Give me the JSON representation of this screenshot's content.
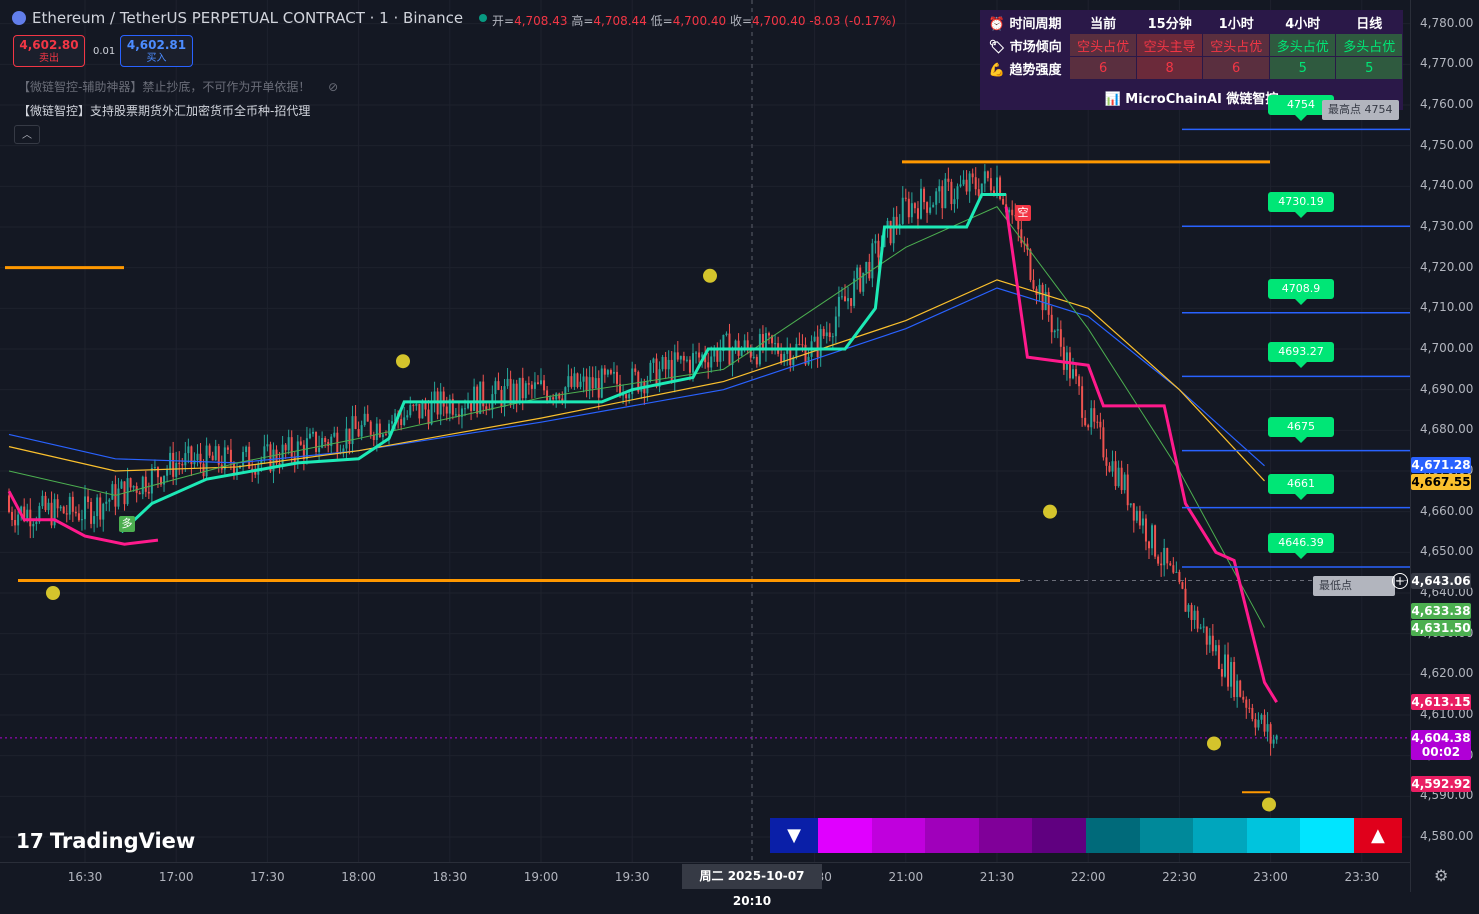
{
  "header": {
    "symbol": "Ethereum / TetherUS PERPETUAL CONTRACT · 1 · Binance",
    "open_label": "开=",
    "open": "4,708.43",
    "high_label": "高=",
    "high": "4,708.44",
    "low_label": "低=",
    "low": "4,700.40",
    "close_label": "收=",
    "close": "4,700.40",
    "change": "-8.03 (-0.17%)"
  },
  "trade": {
    "sell_price": "4,602.80",
    "sell_label": "卖出",
    "spread": "0.01",
    "buy_price": "4,602.81",
    "buy_label": "买入"
  },
  "indicators": {
    "line1": "【微链智控-辅助神器】禁止抄底，不可作为开单依据！",
    "line2": "【微链智控】支持股票期货外汇加密货币全币种-招代理"
  },
  "table": {
    "header": [
      "时间周期",
      "当前",
      "15分钟",
      "1小时",
      "4小时",
      "日线"
    ],
    "row1_label": "市场倾向",
    "row1": [
      "空头占优",
      "空头主导",
      "空头占优",
      "多头占优",
      "多头占优"
    ],
    "row2_label": "趋势强度",
    "row2": [
      "6",
      "8",
      "6",
      "5",
      "5"
    ],
    "footer": "MicroChainAI 微链智控",
    "colors": {
      "bear_bg": "#5a2f3f",
      "bear_strong_bg": "#6b2a3a",
      "bull_bg": "#2f5a3f",
      "bear_text": "#f23645",
      "bull_text": "#00e676"
    }
  },
  "price_axis": {
    "ticks": [
      "4,780.00",
      "4,770.00",
      "4,760.00",
      "4,750.00",
      "4,740.00",
      "4,730.00",
      "4,720.00",
      "4,710.00",
      "4,700.00",
      "4,690.00",
      "4,680.00",
      "4,670.00",
      "4,660.00",
      "4,650.00",
      "4,640.00",
      "4,630.00",
      "4,620.00",
      "4,610.00",
      "4,600.00",
      "4,590.00",
      "4,580.00"
    ],
    "tags": [
      {
        "label": "4,671.28",
        "color": "#2962ff"
      },
      {
        "label": "4,667.55",
        "color": "#fbc02d",
        "text": "#000"
      },
      {
        "label": "4,643.06",
        "color": "#363a45"
      },
      {
        "label": "4,633.38",
        "color": "#4caf50"
      },
      {
        "label": "4,631.50",
        "color": "#4caf50"
      },
      {
        "label": "4,613.15",
        "color": "#e91e63"
      },
      {
        "label": "4,604.38",
        "color": "#b000d6"
      },
      {
        "label": "00:02",
        "color": "#b000d6"
      },
      {
        "label": "4,592.92",
        "color": "#e91e63"
      }
    ]
  },
  "time_axis": {
    "ticks": [
      "16:30",
      "17:00",
      "17:30",
      "18:00",
      "18:30",
      "19:00",
      "19:30",
      "20:30",
      "21:00",
      "21:30",
      "22:00",
      "22:30",
      "23:00",
      "23:30"
    ],
    "cursor": "周二 2025-10-07   20:10"
  },
  "levels": {
    "labels": [
      "4754",
      "4730.19",
      "4708.9",
      "4693.27",
      "4675",
      "4661",
      "4646.39"
    ],
    "high_point": "最高点 4754",
    "low_point": "最低点 4646.39"
  },
  "markers": {
    "long": "多",
    "short": "空"
  },
  "branding": {
    "logo": "TradingView"
  },
  "chart_data": {
    "type": "line",
    "title": "Ethereum / TetherUS PERPETUAL CONTRACT · 1 · Binance",
    "x": [
      "16:30",
      "17:00",
      "17:30",
      "18:00",
      "18:30",
      "19:00",
      "19:30",
      "20:00",
      "20:30",
      "21:00",
      "21:30",
      "22:00",
      "22:30",
      "23:00"
    ],
    "series": [
      {
        "name": "close",
        "values": [
          4660,
          4672,
          4673,
          4680,
          4687,
          4690,
          4692,
          4700,
          4700,
          4735,
          4742,
          4683,
          4640,
          4604
        ]
      },
      {
        "name": "trend-bull",
        "values": [
          4655,
          4668,
          4672,
          4675,
          4687,
          4687,
          4693,
          4700,
          4700,
          4730,
          4738,
          null,
          null,
          null
        ]
      },
      {
        "name": "trend-bear",
        "values": [
          4664,
          4652,
          null,
          null,
          null,
          null,
          null,
          null,
          null,
          null,
          4735,
          4696,
          4686,
          4613
        ]
      }
    ],
    "ylim": [
      4575,
      4785
    ],
    "price_lines": [
      4754,
      4730.19,
      4708.9,
      4693.27,
      4675,
      4661,
      4646.39
    ],
    "support": 4643.06,
    "resistance": 4746,
    "grid": true
  }
}
